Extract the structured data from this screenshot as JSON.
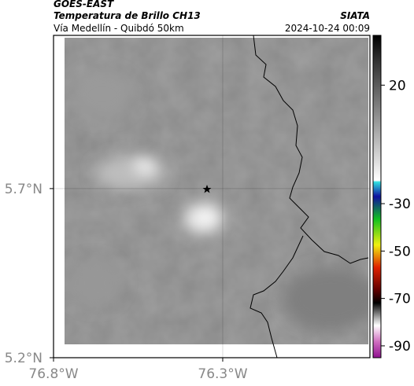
{
  "header": {
    "title": "GOES-EAST",
    "subtitle": "Temperatura de Brillo CH13",
    "route": "Vía Medellín - Quibdó 50km",
    "source": "SIATA",
    "timestamp": "2024-10-24 00:09"
  },
  "map": {
    "lat_lim": [
      5.2,
      6.153
    ],
    "lon_lim": [
      -76.8,
      -75.865
    ],
    "lat_ticks": [
      {
        "value": 5.2,
        "label": "5.2°N"
      },
      {
        "value": 5.7,
        "label": "5.7°N"
      }
    ],
    "lon_ticks": [
      {
        "value": -76.8,
        "label": "76.8°W"
      },
      {
        "value": -76.3,
        "label": "76.3°W"
      }
    ]
  },
  "colorbar": {
    "lim": [
      -95,
      41
    ],
    "ticks": [
      20,
      -30,
      -50,
      -70,
      -90
    ]
  }
}
